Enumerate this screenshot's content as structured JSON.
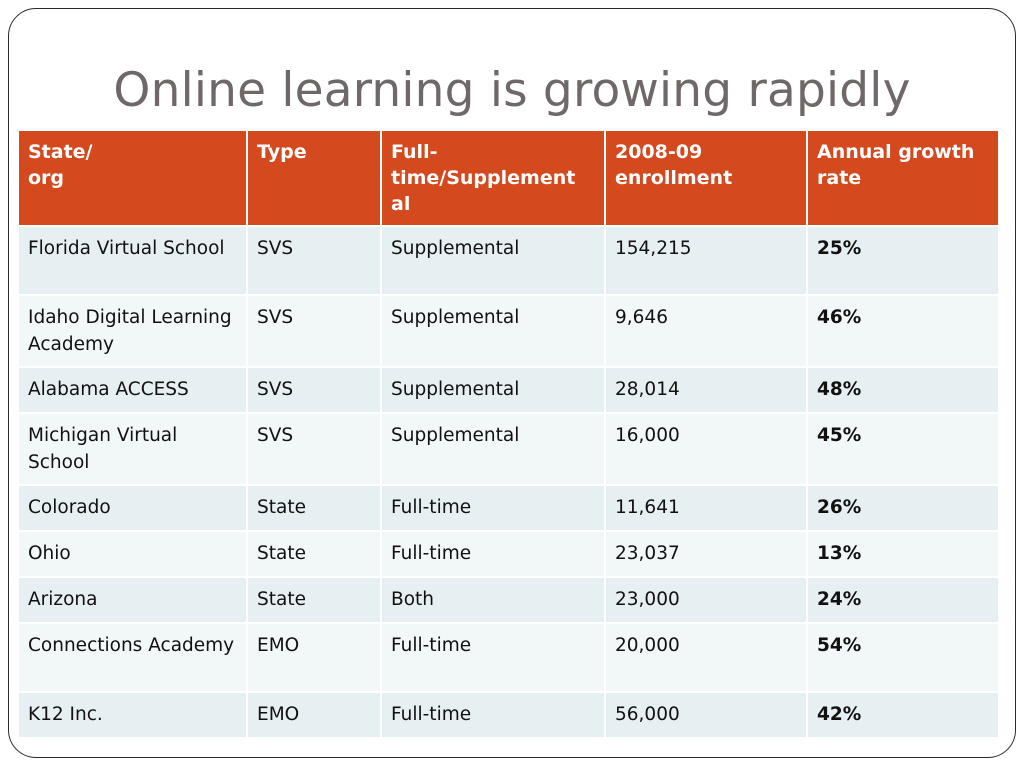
{
  "title": "Online learning is growing rapidly",
  "table": {
    "headers": [
      "State/\norg",
      "Type",
      "Full-\ntime/Supplement\nal",
      "2008-09\nenrollment",
      "Annual growth\nrate"
    ],
    "rows": [
      {
        "org": "Florida Virtual School",
        "type": "SVS",
        "mode": "Supplemental",
        "enrollment": "154,215",
        "growth": "25%"
      },
      {
        "org": "Idaho Digital Learning Academy",
        "type": "SVS",
        "mode": "Supplemental",
        "enrollment": "9,646",
        "growth": "46%"
      },
      {
        "org": "Alabama ACCESS",
        "type": "SVS",
        "mode": "Supplemental",
        "enrollment": "28,014",
        "growth": "48%"
      },
      {
        "org": "Michigan Virtual School",
        "type": "SVS",
        "mode": "Supplemental",
        "enrollment": "16,000",
        "growth": "45%"
      },
      {
        "org": "Colorado",
        "type": "State",
        "mode": "Full-time",
        "enrollment": "11,641",
        "growth": "26%"
      },
      {
        "org": "Ohio",
        "type": "State",
        "mode": "Full-time",
        "enrollment": "23,037",
        "growth": "13%"
      },
      {
        "org": "Arizona",
        "type": "State",
        "mode": "Both",
        "enrollment": "23,000",
        "growth": "24%"
      },
      {
        "org": "Connections Academy",
        "type": "EMO",
        "mode": "Full-time",
        "enrollment": "20,000",
        "growth": "54%"
      },
      {
        "org": "K12 Inc.",
        "type": "EMO",
        "mode": "Full-time",
        "enrollment": "56,000",
        "growth": "42%"
      }
    ]
  },
  "colors": {
    "header_bg": "#d4491d",
    "row_odd": "#e6eff2",
    "row_even": "#f2f7f8",
    "title_text": "#6f6868"
  }
}
